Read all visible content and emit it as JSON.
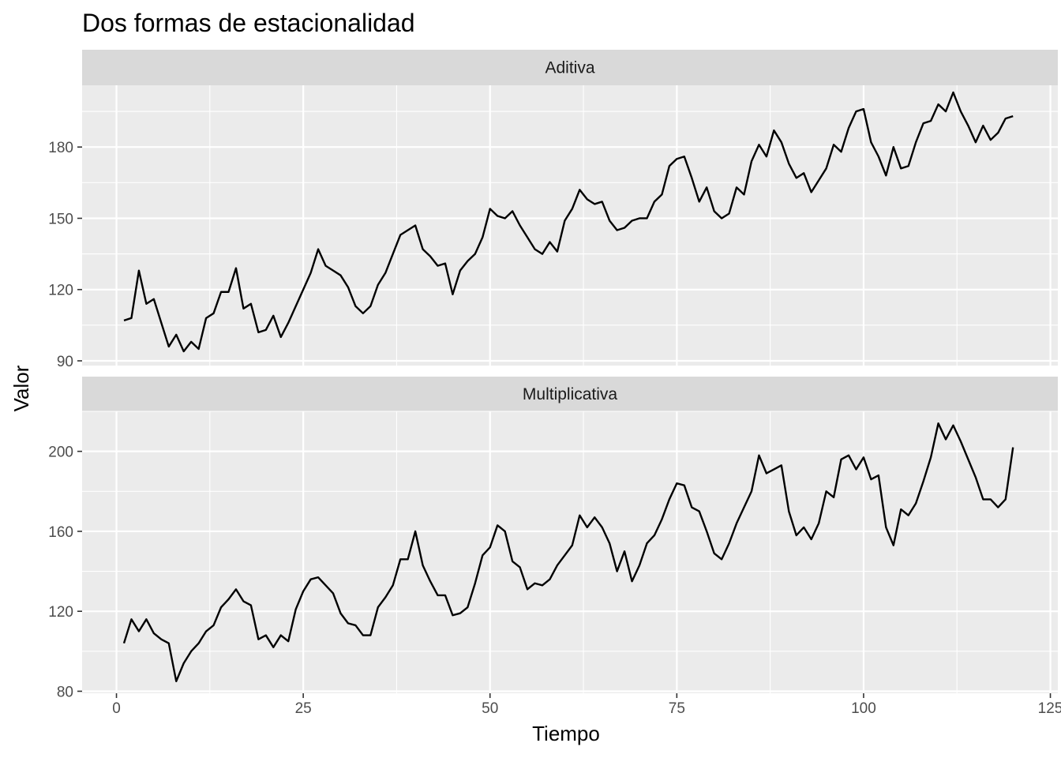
{
  "chart_data": {
    "type": "line",
    "title": "Dos formas de estacionalidad",
    "xlabel": "Tiempo",
    "ylabel": "Valor",
    "xlim": [
      -4.6,
      126
    ],
    "xticks": [
      0,
      25,
      50,
      75,
      100,
      125
    ],
    "grid": true,
    "colors": {
      "panel_bg": "#ebebeb",
      "strip_bg": "#d9d9d9",
      "grid": "#ffffff",
      "line": "#000000"
    },
    "panels": [
      {
        "label": "Aditiva",
        "ylim": [
          88,
          206
        ],
        "yticks": [
          90,
          120,
          150,
          180
        ],
        "x": [
          1,
          2,
          3,
          4,
          5,
          6,
          7,
          8,
          9,
          10,
          11,
          12,
          13,
          14,
          15,
          16,
          17,
          18,
          19,
          20,
          21,
          22,
          23,
          24,
          25,
          26,
          27,
          28,
          29,
          30,
          31,
          32,
          33,
          34,
          35,
          36,
          37,
          38,
          39,
          40,
          41,
          42,
          43,
          44,
          45,
          46,
          47,
          48,
          49,
          50,
          51,
          52,
          53,
          54,
          55,
          56,
          57,
          58,
          59,
          60,
          61,
          62,
          63,
          64,
          65,
          66,
          67,
          68,
          69,
          70,
          71,
          72,
          73,
          74,
          75,
          76,
          77,
          78,
          79,
          80,
          81,
          82,
          83,
          84,
          85,
          86,
          87,
          88,
          89,
          90,
          91,
          92,
          93,
          94,
          95,
          96,
          97,
          98,
          99,
          100,
          101,
          102,
          103,
          104,
          105,
          106,
          107,
          108,
          109,
          110,
          111,
          112,
          113,
          114,
          115,
          116,
          117,
          118,
          119,
          120
        ],
        "values": [
          107,
          108,
          128,
          114,
          116,
          106,
          96,
          101,
          94,
          98,
          95,
          108,
          110,
          119,
          119,
          129,
          112,
          114,
          102,
          103,
          109,
          100,
          106,
          113,
          120,
          127,
          137,
          130,
          128,
          126,
          121,
          113,
          110,
          113,
          122,
          127,
          135,
          143,
          145,
          147,
          137,
          134,
          130,
          131,
          118,
          128,
          132,
          135,
          142,
          154,
          151,
          150,
          153,
          147,
          142,
          137,
          135,
          140,
          136,
          149,
          154,
          162,
          158,
          156,
          157,
          149,
          145,
          146,
          149,
          150,
          150,
          157,
          160,
          172,
          175,
          176,
          167,
          157,
          163,
          153,
          150,
          152,
          163,
          160,
          174,
          181,
          176,
          187,
          182,
          173,
          167,
          169,
          161,
          166,
          171,
          181,
          178,
          188,
          195,
          196,
          182,
          176,
          168,
          180,
          171,
          172,
          182,
          190,
          191,
          198,
          195,
          203,
          195,
          189,
          182,
          189,
          183,
          186,
          192,
          193
        ]
      },
      {
        "label": "Multiplicativa",
        "ylim": [
          79,
          220
        ],
        "yticks": [
          80,
          120,
          160,
          200
        ],
        "x": [
          1,
          2,
          3,
          4,
          5,
          6,
          7,
          8,
          9,
          10,
          11,
          12,
          13,
          14,
          15,
          16,
          17,
          18,
          19,
          20,
          21,
          22,
          23,
          24,
          25,
          26,
          27,
          28,
          29,
          30,
          31,
          32,
          33,
          34,
          35,
          36,
          37,
          38,
          39,
          40,
          41,
          42,
          43,
          44,
          45,
          46,
          47,
          48,
          49,
          50,
          51,
          52,
          53,
          54,
          55,
          56,
          57,
          58,
          59,
          60,
          61,
          62,
          63,
          64,
          65,
          66,
          67,
          68,
          69,
          70,
          71,
          72,
          73,
          74,
          75,
          76,
          77,
          78,
          79,
          80,
          81,
          82,
          83,
          84,
          85,
          86,
          87,
          88,
          89,
          90,
          91,
          92,
          93,
          94,
          95,
          96,
          97,
          98,
          99,
          100,
          101,
          102,
          103,
          104,
          105,
          106,
          107,
          108,
          109,
          110,
          111,
          112,
          113,
          114,
          115,
          116,
          117,
          118,
          119,
          120
        ],
        "values": [
          104,
          116,
          110,
          116,
          109,
          106,
          104,
          85,
          94,
          100,
          104,
          110,
          113,
          122,
          126,
          131,
          125,
          123,
          106,
          108,
          102,
          108,
          105,
          121,
          130,
          136,
          137,
          133,
          129,
          119,
          114,
          113,
          108,
          108,
          122,
          127,
          133,
          146,
          146,
          160,
          143,
          135,
          128,
          128,
          118,
          119,
          122,
          134,
          148,
          152,
          163,
          160,
          145,
          142,
          131,
          134,
          133,
          136,
          143,
          148,
          153,
          168,
          162,
          167,
          162,
          154,
          140,
          150,
          135,
          143,
          154,
          158,
          166,
          176,
          184,
          183,
          172,
          170,
          160,
          149,
          146,
          154,
          164,
          172,
          180,
          198,
          189,
          191,
          193,
          170,
          158,
          162,
          156,
          164,
          180,
          177,
          196,
          198,
          191,
          197,
          186,
          188,
          162,
          153,
          171,
          168,
          174,
          185,
          197,
          214,
          206,
          213,
          205,
          196,
          187,
          176,
          176,
          172,
          176,
          202
        ]
      }
    ]
  }
}
